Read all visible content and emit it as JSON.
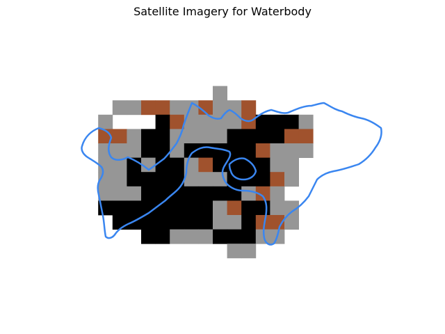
{
  "title": "Satellite Imagery for Waterbody",
  "colors": {
    "land": "#969696",
    "water": "#000000",
    "soil": "#A0522D",
    "background": "#FFFFFF",
    "outline": "#3A86F0"
  },
  "legend_keys": {
    "G": "land",
    "B": "water",
    "R": "soil",
    ".": "background"
  },
  "raster": [
    "..................",
    "..................",
    "..................",
    "..................",
    "..................",
    "..................",
    "..........G.......",
    "...GGRRGGRGGR.....",
    "..G...BRGGGGRBBBG.",
    "..RRGBBGGGGBBBBRR.",
    "..GGGBBGBBBBBRGGG.",
    "..GGBGBBGRBBBBGG..",
    "..GGBBBBGGGBBBRG..",
    "..GGGBBBBBBBGRG...",
    "..BBBBBBBBGRBBGG..",
    "...BBBBBBBGGBRRG..",
    ".....BBGGGBBBGG...",
    "...........GG.....",
    "..................",
    "..................",
    ".................."
  ]
}
